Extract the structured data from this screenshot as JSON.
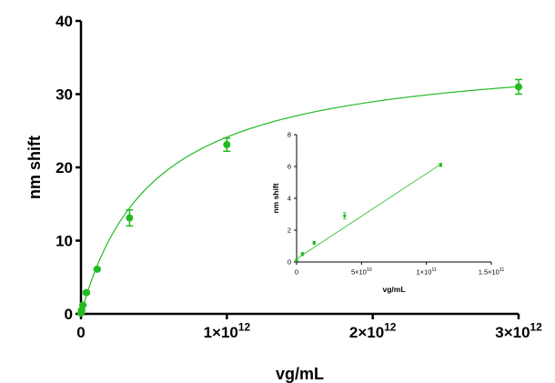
{
  "colors": {
    "series": "#22bb22",
    "axis": "#000000"
  },
  "chart_data": [
    {
      "type": "scatter",
      "title": "",
      "xlabel": "vg/mL",
      "ylabel": "nm shift",
      "xlim": [
        0,
        3000000000000.0
      ],
      "ylim": [
        0,
        40
      ],
      "grid": false,
      "x_ticks": [
        {
          "value": 0,
          "label": "0"
        },
        {
          "value": 1000000000000.0,
          "label": "1×10",
          "exp": "12"
        },
        {
          "value": 2000000000000.0,
          "label": "2×10",
          "exp": "12"
        },
        {
          "value": 3000000000000.0,
          "label": "3×10",
          "exp": "12"
        }
      ],
      "y_ticks": [
        {
          "value": 0,
          "label": "0"
        },
        {
          "value": 10,
          "label": "10"
        },
        {
          "value": 20,
          "label": "20"
        },
        {
          "value": 30,
          "label": "30"
        },
        {
          "value": 40,
          "label": "40"
        }
      ],
      "series": [
        {
          "points": [
            {
              "x": 0,
              "y": 0.1,
              "err": 0.1
            },
            {
              "x": 4500000000.0,
              "y": 0.5,
              "err": 0.1
            },
            {
              "x": 13500000000.0,
              "y": 1.2,
              "err": 0.1
            },
            {
              "x": 37000000000.0,
              "y": 2.9,
              "err": 0.2
            },
            {
              "x": 111000000000.0,
              "y": 6.1,
              "err": 0.15
            },
            {
              "x": 333000000000.0,
              "y": 13.1,
              "err": 1.1
            },
            {
              "x": 1000000000000.0,
              "y": 23.1,
              "err": 0.9
            },
            {
              "x": 3000000000000.0,
              "y": 31.0,
              "err": 1.0
            }
          ],
          "fit": {
            "model": "one-site hyperbola",
            "bmax": 36.2,
            "kd": 500000000000.0
          }
        }
      ]
    },
    {
      "type": "scatter",
      "title": "",
      "xlabel": "vg/mL",
      "ylabel": "nm shift",
      "xlim": [
        0,
        150000000000.0
      ],
      "ylim": [
        0,
        8
      ],
      "grid": false,
      "x_ticks": [
        {
          "value": 0,
          "label": "0"
        },
        {
          "value": 50000000000.0,
          "label": "5×10",
          "exp": "10"
        },
        {
          "value": 100000000000.0,
          "label": "1×10",
          "exp": "11"
        },
        {
          "value": 150000000000.0,
          "label": "1.5×10",
          "exp": "11"
        }
      ],
      "y_ticks": [
        {
          "value": 0,
          "label": "0"
        },
        {
          "value": 2,
          "label": "2"
        },
        {
          "value": 4,
          "label": "4"
        },
        {
          "value": 6,
          "label": "6"
        },
        {
          "value": 8,
          "label": "8"
        }
      ],
      "series": [
        {
          "points": [
            {
              "x": 0,
              "y": 0.1,
              "err": 0.05
            },
            {
              "x": 4500000000.0,
              "y": 0.5,
              "err": 0.1
            },
            {
              "x": 13500000000.0,
              "y": 1.2,
              "err": 0.1
            },
            {
              "x": 37000000000.0,
              "y": 2.9,
              "err": 0.2
            },
            {
              "x": 111000000000.0,
              "y": 6.1,
              "err": 0.1
            }
          ],
          "fit": {
            "model": "linear",
            "slope": 5.35e-11,
            "intercept": 0.2,
            "x_range": [
              0,
              111000000000.0
            ]
          }
        }
      ]
    }
  ]
}
